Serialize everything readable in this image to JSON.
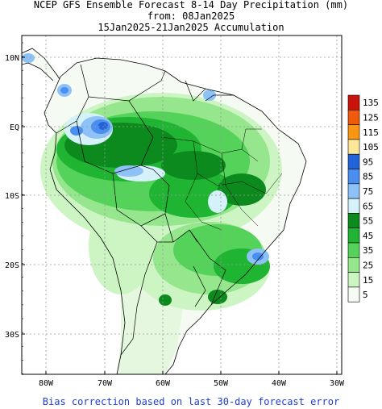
{
  "header": {
    "title_line1": "NCEP GFS Ensemble Forecast 8-14 Day Precipitation (mm)",
    "title_line2": "from: 08Jan2025",
    "title_line3": "15Jan2025-21Jan2025 Accumulation"
  },
  "footer": {
    "note": "Bias correction based on last 30-day forecast error"
  },
  "axes": {
    "lat_labels": [
      "10N",
      "EQ",
      "10S",
      "20S",
      "30S"
    ],
    "lon_labels": [
      "80W",
      "70W",
      "60W",
      "50W",
      "40W",
      "30W"
    ]
  },
  "legend": {
    "items": [
      {
        "label": "135",
        "color": "#c8140a"
      },
      {
        "label": "125",
        "color": "#f05a0a"
      },
      {
        "label": "115",
        "color": "#fa9614"
      },
      {
        "label": "105",
        "color": "#fde89a"
      },
      {
        "label": "95",
        "color": "#2164d9"
      },
      {
        "label": "85",
        "color": "#4a8ff0"
      },
      {
        "label": "75",
        "color": "#8ec2f7"
      },
      {
        "label": "65",
        "color": "#d5f1fa"
      },
      {
        "label": "55",
        "color": "#0c8a1e"
      },
      {
        "label": "45",
        "color": "#1fb432"
      },
      {
        "label": "35",
        "color": "#55d25a"
      },
      {
        "label": "25",
        "color": "#96e68e"
      },
      {
        "label": "15",
        "color": "#cdf5c3"
      },
      {
        "label": "5",
        "color": "#f5fbf3"
      }
    ]
  },
  "colors": {
    "land_outline": "#000000",
    "grid": "#9a9a9a",
    "frame": "#000000"
  }
}
